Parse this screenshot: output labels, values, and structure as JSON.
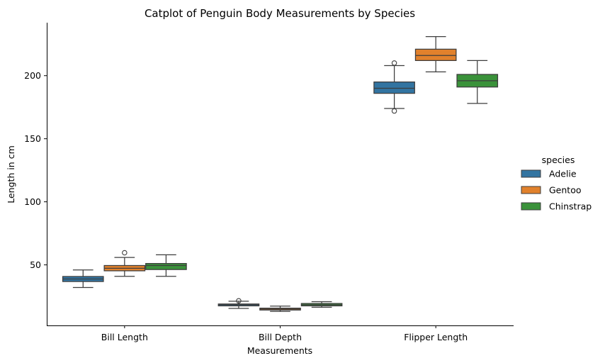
{
  "chart_data": {
    "type": "box",
    "title": "Catplot of Penguin Body Measurements by Species",
    "xlabel": "Measurements",
    "ylabel": "Length in cm",
    "categories": [
      "Bill Length",
      "Bill Depth",
      "Flipper Length"
    ],
    "ylim": [
      2,
      242
    ],
    "yticks": [
      50,
      100,
      150,
      200
    ],
    "grid": false,
    "legend": {
      "title": "species",
      "placement": "right"
    },
    "series": [
      {
        "name": "Adelie",
        "color": "#3274a1",
        "boxes": [
          {
            "whislo": 32.1,
            "q1": 36.8,
            "med": 38.8,
            "q3": 40.8,
            "whishi": 46.0,
            "fliers": []
          },
          {
            "whislo": 15.5,
            "q1": 17.5,
            "med": 18.4,
            "q3": 19.0,
            "whishi": 21.2,
            "fliers": [
              21.5
            ]
          },
          {
            "whislo": 174.0,
            "q1": 186.0,
            "med": 190.0,
            "q3": 195.0,
            "whishi": 208.0,
            "fliers": [
              172.0,
              210.0
            ]
          }
        ]
      },
      {
        "name": "Gentoo",
        "color": "#e1812c",
        "boxes": [
          {
            "whislo": 40.9,
            "q1": 45.3,
            "med": 47.3,
            "q3": 49.5,
            "whishi": 55.9,
            "fliers": [
              59.6
            ]
          },
          {
            "whislo": 13.1,
            "q1": 14.2,
            "med": 15.0,
            "q3": 15.7,
            "whishi": 17.3,
            "fliers": []
          },
          {
            "whislo": 203.0,
            "q1": 212.0,
            "med": 216.0,
            "q3": 221.0,
            "whishi": 231.0,
            "fliers": []
          }
        ]
      },
      {
        "name": "Chinstrap",
        "color": "#3a923a",
        "boxes": [
          {
            "whislo": 40.9,
            "q1": 46.3,
            "med": 49.5,
            "q3": 51.1,
            "whishi": 58.0,
            "fliers": []
          },
          {
            "whislo": 16.4,
            "q1": 17.5,
            "med": 18.4,
            "q3": 19.4,
            "whishi": 20.8,
            "fliers": []
          },
          {
            "whislo": 178.0,
            "q1": 191.0,
            "med": 196.0,
            "q3": 201.0,
            "whishi": 212.0,
            "fliers": []
          }
        ]
      }
    ]
  }
}
